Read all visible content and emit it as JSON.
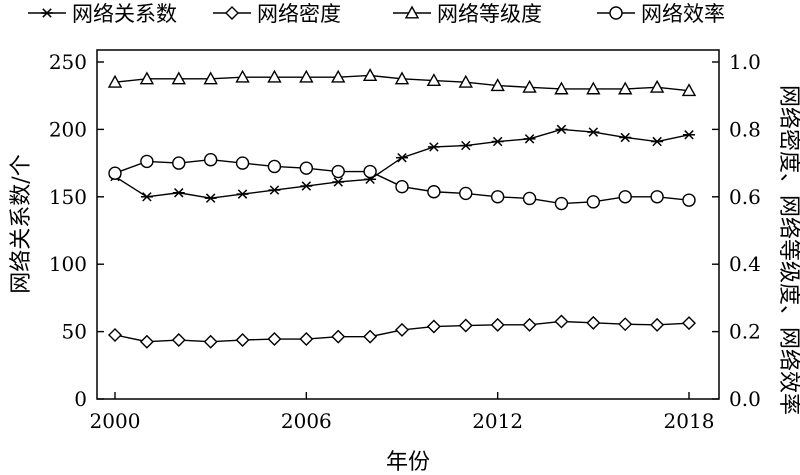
{
  "chart_data": {
    "type": "line",
    "xlabel": "年份",
    "ylabel_left": "网络关系数/个",
    "ylabel_right": "网络密度、网络等级度、网络效率",
    "x": [
      2000,
      2001,
      2002,
      2003,
      2004,
      2005,
      2006,
      2007,
      2008,
      2009,
      2010,
      2011,
      2012,
      2013,
      2014,
      2015,
      2016,
      2017,
      2018
    ],
    "x_ticks": [
      "2000",
      "2006",
      "2012",
      "2018"
    ],
    "xlim": [
      2000,
      2018
    ],
    "ylim_left": [
      0,
      250
    ],
    "ylim_right": [
      0,
      1
    ],
    "y_ticks_left": [
      "0",
      "50",
      "100",
      "150",
      "200",
      "250"
    ],
    "y_ticks_right": [
      "0.0",
      "0.2",
      "0.4",
      "0.6",
      "0.8",
      "1.0"
    ],
    "legend_position": "top",
    "series": [
      {
        "name": "网络关系数",
        "marker": "asterisk",
        "axis": "left",
        "values": [
          165,
          150,
          153,
          149,
          152,
          155,
          158,
          161,
          163,
          179,
          187,
          188,
          191,
          193,
          200,
          198,
          194,
          191,
          196
        ]
      },
      {
        "name": "网络密度",
        "marker": "diamond",
        "axis": "right",
        "values": [
          0.19,
          0.17,
          0.175,
          0.17,
          0.175,
          0.178,
          0.178,
          0.185,
          0.185,
          0.205,
          0.215,
          0.218,
          0.22,
          0.22,
          0.23,
          0.226,
          0.222,
          0.22,
          0.225
        ]
      },
      {
        "name": "网络等级度",
        "marker": "triangle",
        "axis": "right",
        "values": [
          0.94,
          0.95,
          0.95,
          0.95,
          0.955,
          0.955,
          0.955,
          0.955,
          0.96,
          0.95,
          0.945,
          0.94,
          0.93,
          0.925,
          0.92,
          0.92,
          0.92,
          0.925,
          0.915
        ]
      },
      {
        "name": "网络效率",
        "marker": "circle",
        "axis": "right",
        "values": [
          0.67,
          0.705,
          0.7,
          0.71,
          0.7,
          0.69,
          0.685,
          0.675,
          0.675,
          0.63,
          0.615,
          0.61,
          0.6,
          0.595,
          0.58,
          0.585,
          0.6,
          0.6,
          0.59
        ]
      }
    ]
  }
}
